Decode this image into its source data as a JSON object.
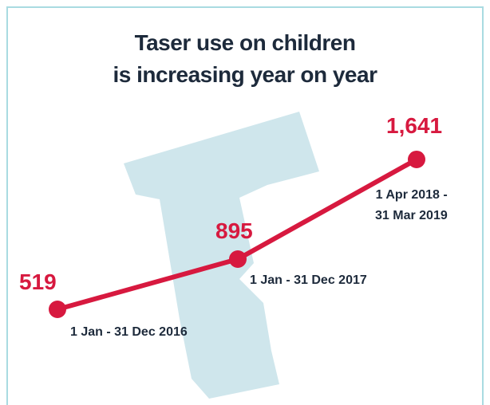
{
  "chart_data": {
    "type": "line",
    "title": "Taser use on children\nis increasing year on year",
    "categories": [
      "1 Jan - 31 Dec 2016",
      "1 Jan - 31 Dec 2017",
      "1 Apr 2018 -\n31 Mar 2019"
    ],
    "values": [
      519,
      895,
      1641
    ],
    "value_labels": [
      "519",
      "895",
      "1,641"
    ],
    "color": "#d7193f"
  }
}
